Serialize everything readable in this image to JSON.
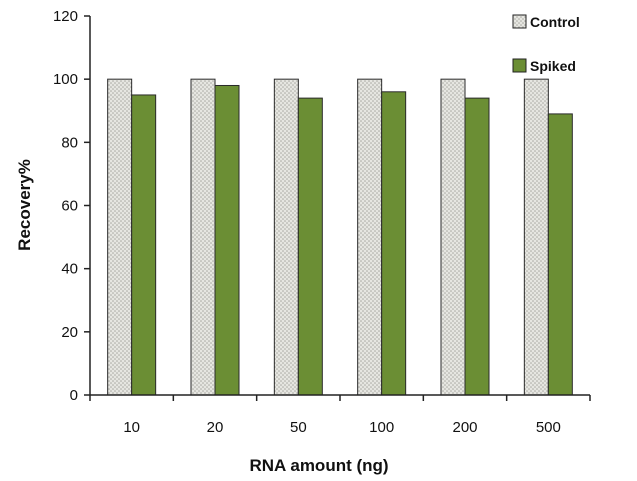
{
  "chart_data": {
    "type": "bar",
    "categories": [
      "10",
      "20",
      "50",
      "100",
      "200",
      "500"
    ],
    "series": [
      {
        "name": "Control",
        "values": [
          100,
          100,
          100,
          100,
          100,
          100
        ],
        "color": "#d9d9d4"
      },
      {
        "name": "Spiked",
        "values": [
          95,
          98,
          94,
          96,
          94,
          89
        ],
        "color": "#6b8e34"
      }
    ],
    "xlabel": "RNA amount (ng)",
    "ylabel": "Recovery%",
    "ylim": [
      0,
      120
    ],
    "yticks": [
      "0",
      "20",
      "40",
      "60",
      "80",
      "100",
      "120"
    ],
    "grid": false,
    "legend_position": "top-right"
  }
}
